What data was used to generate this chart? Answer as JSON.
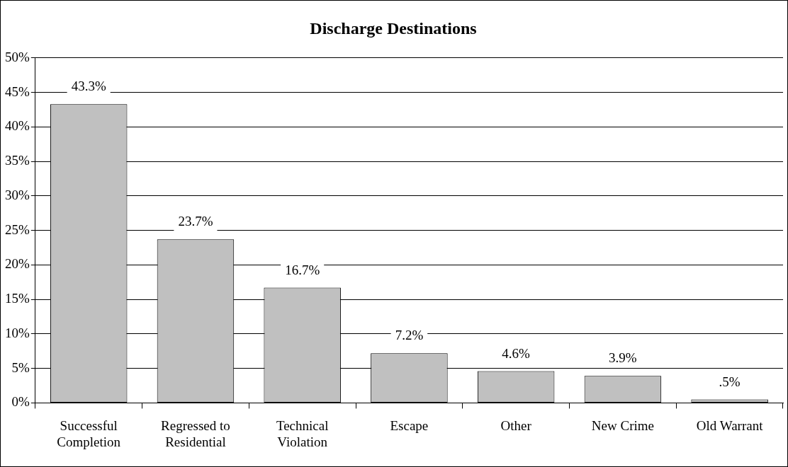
{
  "chart_data": {
    "type": "bar",
    "title": "Discharge Destinations",
    "categories": [
      "Successful Completion",
      "Regressed to Residential",
      "Technical Violation",
      "Escape",
      "Other",
      "New Crime",
      "Old Warrant"
    ],
    "values": [
      43.3,
      23.7,
      16.7,
      7.2,
      4.6,
      3.9,
      0.5
    ],
    "value_labels": [
      "43.3%",
      "23.7%",
      "16.7%",
      "7.2%",
      "4.6%",
      "3.9%",
      ".5%"
    ],
    "color": "#c0c0c0",
    "ylim": [
      0,
      50
    ],
    "yticks": [
      {
        "value": 0,
        "label": "0%"
      },
      {
        "value": 5,
        "label": "5%"
      },
      {
        "value": 10,
        "label": "10%"
      },
      {
        "value": 15,
        "label": "15%"
      },
      {
        "value": 20,
        "label": "20%"
      },
      {
        "value": 25,
        "label": "25%"
      },
      {
        "value": 30,
        "label": "30%"
      },
      {
        "value": 35,
        "label": "35%"
      },
      {
        "value": 40,
        "label": "40%"
      },
      {
        "value": 45,
        "label": "45%"
      },
      {
        "value": 50,
        "label": "50%"
      }
    ],
    "grid": "y",
    "legend": false
  }
}
